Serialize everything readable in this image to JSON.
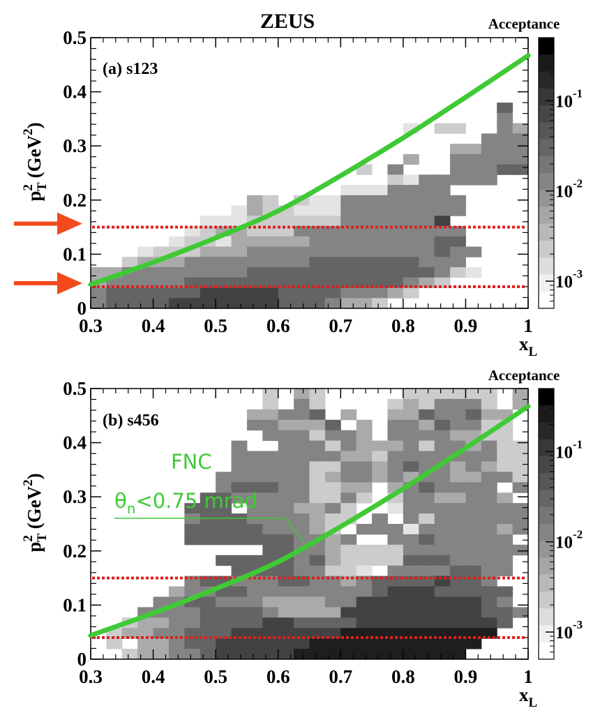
{
  "figure": {
    "title": "ZEUS",
    "colorbar_title": "Acceptance",
    "colorbar_tick_labels": [
      "10",
      "10",
      "10"
    ],
    "colorbar_tick_exponents": [
      "-1",
      "-2",
      "-3"
    ],
    "x_axis_label": "x",
    "x_axis_label_sub": "L",
    "y_axis_label": "p",
    "y_axis_label_sup": "2",
    "y_axis_label_sub": "T",
    "y_axis_label_unit": "(GeV",
    "y_axis_label_unit_sup": "2",
    "y_axis_label_close": ")",
    "annotation_line1": "FNC",
    "annotation_symbol": "θ",
    "annotation_symbol_sub": "n",
    "annotation_line2": "<0.75 mrad"
  },
  "colors": {
    "curve": "#3fca35",
    "cut_lines": "#e01e1e",
    "arrows": "#f24a1c",
    "annotation": "#3fca35"
  },
  "chart_data": [
    {
      "type": "heatmap",
      "panel_label": "(a) s123",
      "xlim": [
        0.3,
        1.0
      ],
      "ylim": [
        0,
        0.5
      ],
      "x_ticks": [
        "0.3",
        "0.4",
        "0.5",
        "0.6",
        "0.7",
        "0.8",
        "0.9",
        "1"
      ],
      "y_ticks": [
        "0",
        "0.1",
        "0.2",
        "0.3",
        "0.4",
        "0.5"
      ],
      "colorbar": {
        "scale": "log",
        "range": [
          0.0005,
          0.5
        ]
      },
      "curve": {
        "x": [
          0.3,
          0.4,
          0.5,
          0.6,
          0.7,
          0.8,
          0.9,
          1.0
        ],
        "y": [
          0.044,
          0.085,
          0.13,
          0.18,
          0.245,
          0.315,
          0.39,
          0.467
        ]
      },
      "cut_lines_y": [
        0.04,
        0.15
      ],
      "arrows_at_y": [
        0.04,
        0.15
      ]
    },
    {
      "type": "heatmap",
      "panel_label": "(b) s456",
      "xlim": [
        0.3,
        1.0
      ],
      "ylim": [
        0,
        0.5
      ],
      "x_ticks": [
        "0.3",
        "0.4",
        "0.5",
        "0.6",
        "0.7",
        "0.8",
        "0.9",
        "1"
      ],
      "y_ticks": [
        "0",
        "0.1",
        "0.2",
        "0.3",
        "0.4",
        "0.5"
      ],
      "colorbar": {
        "scale": "log",
        "range": [
          0.0005,
          0.5
        ]
      },
      "curve": {
        "x": [
          0.3,
          0.4,
          0.5,
          0.6,
          0.7,
          0.8,
          0.9,
          1.0
        ],
        "y": [
          0.044,
          0.085,
          0.13,
          0.18,
          0.245,
          0.315,
          0.39,
          0.467
        ]
      },
      "cut_lines_y": [
        0.04,
        0.15
      ],
      "annotation": "FNC θn<0.75 mrad"
    }
  ]
}
